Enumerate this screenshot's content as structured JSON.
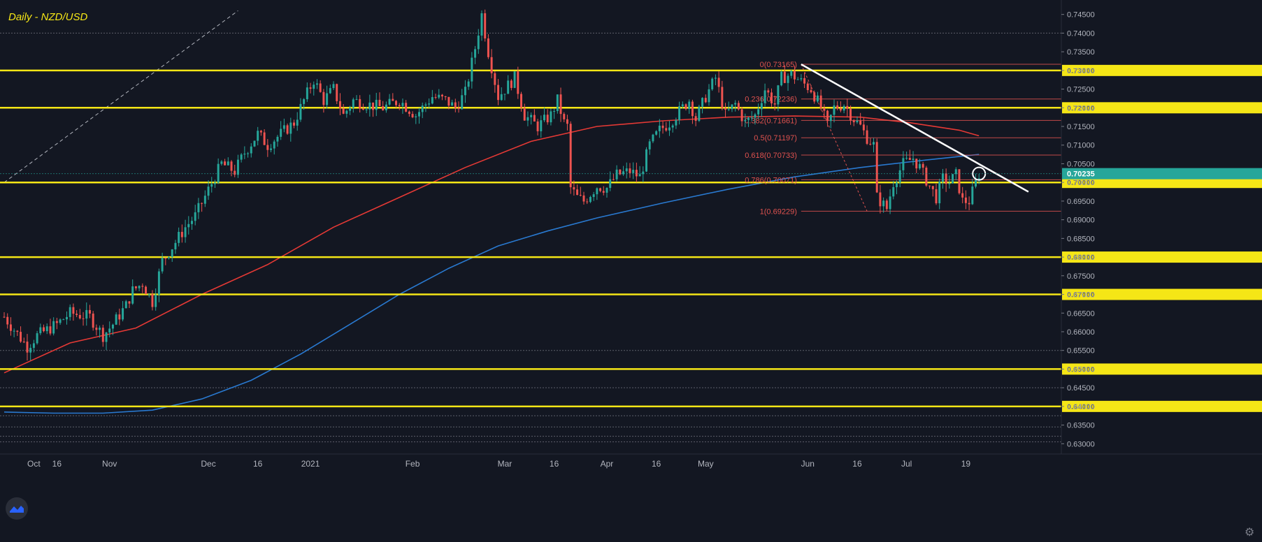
{
  "header": {
    "title": "Daily - NZD/USD"
  },
  "colors": {
    "background": "#131722",
    "bull": "#26a69a",
    "bear": "#ef5350",
    "level": "#f5e616",
    "ma_red": "#e53935",
    "ma_blue": "#2979d0",
    "fib": "#e0524f",
    "axis_text": "#b2b5be"
  },
  "icons": {
    "logo": "tradingview-logo-icon",
    "settings": "gear-icon"
  },
  "chart_data": {
    "type": "candlestick",
    "title": "Daily - NZD/USD",
    "ylim": [
      0.628,
      0.747
    ],
    "y_ticks": [
      "0.74500",
      "0.74000",
      "0.73500",
      "0.73000",
      "0.72500",
      "0.72000",
      "0.71500",
      "0.71000",
      "0.70500",
      "0.70000",
      "0.69500",
      "0.69000",
      "0.68500",
      "0.68000",
      "0.67500",
      "0.67000",
      "0.66500",
      "0.66000",
      "0.65500",
      "0.65000",
      "0.64500",
      "0.64000",
      "0.63500",
      "0.63000"
    ],
    "x_labels": [
      {
        "label": "Oct",
        "day": 9
      },
      {
        "label": "16",
        "day": 16
      },
      {
        "label": "Nov",
        "day": 32
      },
      {
        "label": "Dec",
        "day": 62
      },
      {
        "label": "16",
        "day": 77
      },
      {
        "label": "2021",
        "day": 93
      },
      {
        "label": "Feb",
        "day": 124
      },
      {
        "label": "Mar",
        "day": 152
      },
      {
        "label": "16",
        "day": 167
      },
      {
        "label": "Apr",
        "day": 183
      },
      {
        "label": "16",
        "day": 198
      },
      {
        "label": "May",
        "day": 213
      },
      {
        "label": "Jun",
        "day": 244
      },
      {
        "label": "16",
        "day": 259
      },
      {
        "label": "Jul",
        "day": 274
      },
      {
        "label": "19",
        "day": 292
      }
    ],
    "x_domain": [
      0,
      321
    ],
    "current_price": {
      "label": "0.70235",
      "value": 0.70235
    },
    "horizontal_levels": [
      {
        "value": 0.73,
        "label": "0.73000"
      },
      {
        "value": 0.72,
        "label": "0.72000"
      },
      {
        "value": 0.7,
        "label": "0.70000"
      },
      {
        "value": 0.68,
        "label": "0.68000"
      },
      {
        "value": 0.67,
        "label": "0.67000"
      },
      {
        "value": 0.65,
        "label": "0.65000"
      },
      {
        "value": 0.64,
        "label": "0.64000"
      }
    ],
    "fibonacci": [
      {
        "label": "0(0.73165)",
        "value": 0.73165
      },
      {
        "label": "0.236(0.72236)",
        "value": 0.72236
      },
      {
        "label": "0.382(0.71661)",
        "value": 0.71661
      },
      {
        "label": "0.5(0.71197)",
        "value": 0.71197
      },
      {
        "label": "0.618(0.70733)",
        "value": 0.70733
      },
      {
        "label": "0.786(0.70071)",
        "value": 0.70071
      },
      {
        "label": "1(0.69229)",
        "value": 0.69229
      }
    ],
    "fib_day_range": [
      242,
      321
    ],
    "trendline": {
      "from": {
        "day": 242,
        "value": 0.73165
      },
      "to": {
        "day": 311,
        "value": 0.6975
      }
    },
    "dashed_line": {
      "from": {
        "day": 0,
        "value": 0.7
      },
      "to": {
        "day": 71,
        "value": 0.746
      }
    },
    "ma_long": {
      "name": "",
      "points": [
        [
          0,
          0.649
        ],
        [
          20,
          0.657
        ],
        [
          40,
          0.661
        ],
        [
          60,
          0.67
        ],
        [
          80,
          0.678
        ],
        [
          100,
          0.688
        ],
        [
          120,
          0.696
        ],
        [
          140,
          0.704
        ],
        [
          160,
          0.711
        ],
        [
          180,
          0.715
        ],
        [
          200,
          0.7165
        ],
        [
          220,
          0.7175
        ],
        [
          240,
          0.7178
        ],
        [
          260,
          0.7175
        ],
        [
          275,
          0.716
        ],
        [
          290,
          0.714
        ],
        [
          296,
          0.7125
        ]
      ]
    },
    "ma_short": {
      "name": "",
      "points": [
        [
          0,
          0.6385
        ],
        [
          15,
          0.6382
        ],
        [
          30,
          0.6382
        ],
        [
          45,
          0.639
        ],
        [
          60,
          0.642
        ],
        [
          75,
          0.647
        ],
        [
          90,
          0.654
        ],
        [
          105,
          0.662
        ],
        [
          120,
          0.67
        ],
        [
          135,
          0.677
        ],
        [
          150,
          0.683
        ],
        [
          165,
          0.687
        ],
        [
          180,
          0.6905
        ],
        [
          200,
          0.6945
        ],
        [
          220,
          0.6982
        ],
        [
          240,
          0.7015
        ],
        [
          260,
          0.704
        ],
        [
          280,
          0.706
        ],
        [
          296,
          0.7075
        ]
      ]
    },
    "anchors": [
      [
        0,
        0.664
      ],
      [
        7,
        0.656
      ],
      [
        10,
        0.659
      ],
      [
        16,
        0.662
      ],
      [
        20,
        0.665
      ],
      [
        26,
        0.664
      ],
      [
        30,
        0.659
      ],
      [
        33,
        0.662
      ],
      [
        37,
        0.667
      ],
      [
        39,
        0.671
      ],
      [
        42,
        0.673
      ],
      [
        45,
        0.668
      ],
      [
        48,
        0.679
      ],
      [
        52,
        0.684
      ],
      [
        55,
        0.688
      ],
      [
        58,
        0.691
      ],
      [
        62,
        0.698
      ],
      [
        66,
        0.705
      ],
      [
        70,
        0.703
      ],
      [
        73,
        0.708
      ],
      [
        77,
        0.713
      ],
      [
        80,
        0.71
      ],
      [
        84,
        0.713
      ],
      [
        88,
        0.716
      ],
      [
        91,
        0.722
      ],
      [
        94,
        0.7275
      ],
      [
        97,
        0.722
      ],
      [
        100,
        0.725
      ],
      [
        103,
        0.718
      ],
      [
        106,
        0.722
      ],
      [
        110,
        0.721
      ],
      [
        115,
        0.72
      ],
      [
        120,
        0.722
      ],
      [
        125,
        0.718
      ],
      [
        130,
        0.723
      ],
      [
        134,
        0.722
      ],
      [
        137,
        0.72
      ],
      [
        140,
        0.724
      ],
      [
        143,
        0.736
      ],
      [
        145,
        0.745
      ],
      [
        147,
        0.735
      ],
      [
        150,
        0.723
      ],
      [
        155,
        0.728
      ],
      [
        158,
        0.718
      ],
      [
        162,
        0.715
      ],
      [
        166,
        0.718
      ],
      [
        168,
        0.722
      ],
      [
        170,
        0.716
      ],
      [
        171,
        0.715
      ],
      [
        172,
        0.6985
      ],
      [
        174,
        0.696
      ],
      [
        176,
        0.695
      ],
      [
        180,
        0.699
      ],
      [
        183,
        0.6985
      ],
      [
        186,
        0.702
      ],
      [
        190,
        0.703
      ],
      [
        193,
        0.7015
      ],
      [
        196,
        0.71
      ],
      [
        199,
        0.714
      ],
      [
        202,
        0.716
      ],
      [
        205,
        0.719
      ],
      [
        208,
        0.722
      ],
      [
        210,
        0.717
      ],
      [
        213,
        0.723
      ],
      [
        216,
        0.728
      ],
      [
        219,
        0.718
      ],
      [
        222,
        0.721
      ],
      [
        225,
        0.716
      ],
      [
        228,
        0.718
      ],
      [
        231,
        0.725
      ],
      [
        234,
        0.721
      ],
      [
        236,
        0.728
      ],
      [
        239,
        0.729
      ],
      [
        242,
        0.727
      ],
      [
        245,
        0.725
      ],
      [
        248,
        0.72
      ],
      [
        250,
        0.715
      ],
      [
        252,
        0.72
      ],
      [
        255,
        0.721
      ],
      [
        258,
        0.717
      ],
      [
        260,
        0.715
      ],
      [
        262,
        0.712
      ],
      [
        264,
        0.71
      ],
      [
        265,
        0.696
      ],
      [
        267,
        0.694
      ],
      [
        268,
        0.693
      ],
      [
        270,
        0.7
      ],
      [
        273,
        0.705
      ],
      [
        276,
        0.7065
      ],
      [
        278,
        0.704
      ],
      [
        281,
        0.699
      ],
      [
        283,
        0.696
      ],
      [
        285,
        0.701
      ],
      [
        287,
        0.7
      ],
      [
        289,
        0.702
      ],
      [
        291,
        0.695
      ],
      [
        293,
        0.695
      ],
      [
        296,
        0.7023
      ]
    ]
  }
}
